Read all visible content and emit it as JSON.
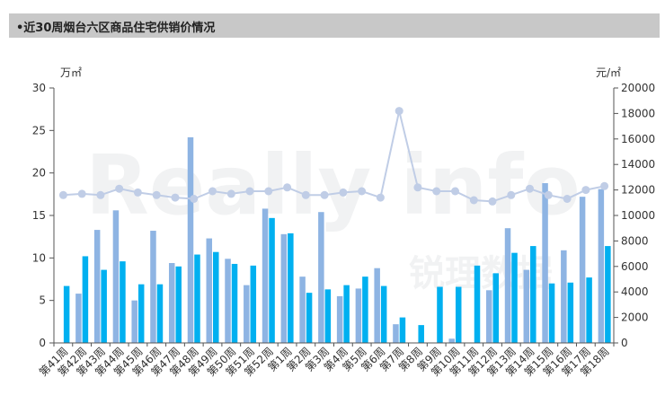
{
  "page": {
    "title": "•近30周烟台六区商品住宅供销价情况"
  },
  "watermark": {
    "brand": "Really info",
    "cn": "锐理数据"
  },
  "colors": {
    "supply": "#8eb4e3",
    "sales": "#00b0f0",
    "price": "#c0cde6",
    "axis": "#555555",
    "title_bg": "#c8c8c8"
  },
  "chart_data": {
    "type": "bar",
    "categories": [
      "第41周",
      "第42周",
      "第43周",
      "第44周",
      "第45周",
      "第46周",
      "第47周",
      "第48周",
      "第49周",
      "第50周",
      "第51周",
      "第52周",
      "第1周",
      "第2周",
      "第3周",
      "第4周",
      "第5周",
      "第6周",
      "第7周",
      "第8周",
      "第9周",
      "第10周",
      "第11周",
      "第12周",
      "第13周",
      "第14周",
      "第15周",
      "第16周",
      "第17周",
      "第18周"
    ],
    "series": [
      {
        "kind": "bar",
        "axis": "left",
        "values": [
          0,
          5.8,
          13.3,
          15.6,
          5.0,
          13.2,
          9.4,
          24.2,
          12.3,
          9.9,
          6.8,
          15.8,
          12.8,
          7.8,
          15.4,
          5.5,
          6.4,
          8.8,
          2.2,
          0,
          0,
          0.5,
          0,
          6.2,
          13.5,
          8.6,
          18.8,
          10.9,
          17.2,
          18.1
        ]
      },
      {
        "kind": "bar",
        "axis": "left",
        "values": [
          6.7,
          10.2,
          8.6,
          9.6,
          6.9,
          6.9,
          9.0,
          10.4,
          10.7,
          9.3,
          9.1,
          14.7,
          12.9,
          5.9,
          6.3,
          6.8,
          7.8,
          6.7,
          3.0,
          2.1,
          6.6,
          6.6,
          9.1,
          8.2,
          10.6,
          11.4,
          7.0,
          7.1,
          7.7,
          11.4
        ]
      },
      {
        "kind": "line",
        "axis": "right",
        "values": [
          11600,
          11700,
          11600,
          12100,
          11800,
          11600,
          11400,
          11300,
          11900,
          11700,
          11900,
          11900,
          12200,
          11600,
          11600,
          11800,
          11900,
          11400,
          18200,
          12200,
          11900,
          11900,
          11200,
          11100,
          11600,
          12100,
          11600,
          11300,
          12000,
          12300
        ]
      }
    ],
    "left_axis": {
      "label": "万㎡",
      "min": 0,
      "max": 30,
      "ticks": [
        "0",
        "5",
        "10",
        "15",
        "20",
        "25",
        "30"
      ]
    },
    "right_axis": {
      "label": "元/㎡",
      "min": 0,
      "max": 20000,
      "ticks": [
        "0",
        "2000",
        "4000",
        "6000",
        "8000",
        "10000",
        "12000",
        "14000",
        "16000",
        "18000",
        "20000"
      ]
    },
    "legend": "none"
  }
}
